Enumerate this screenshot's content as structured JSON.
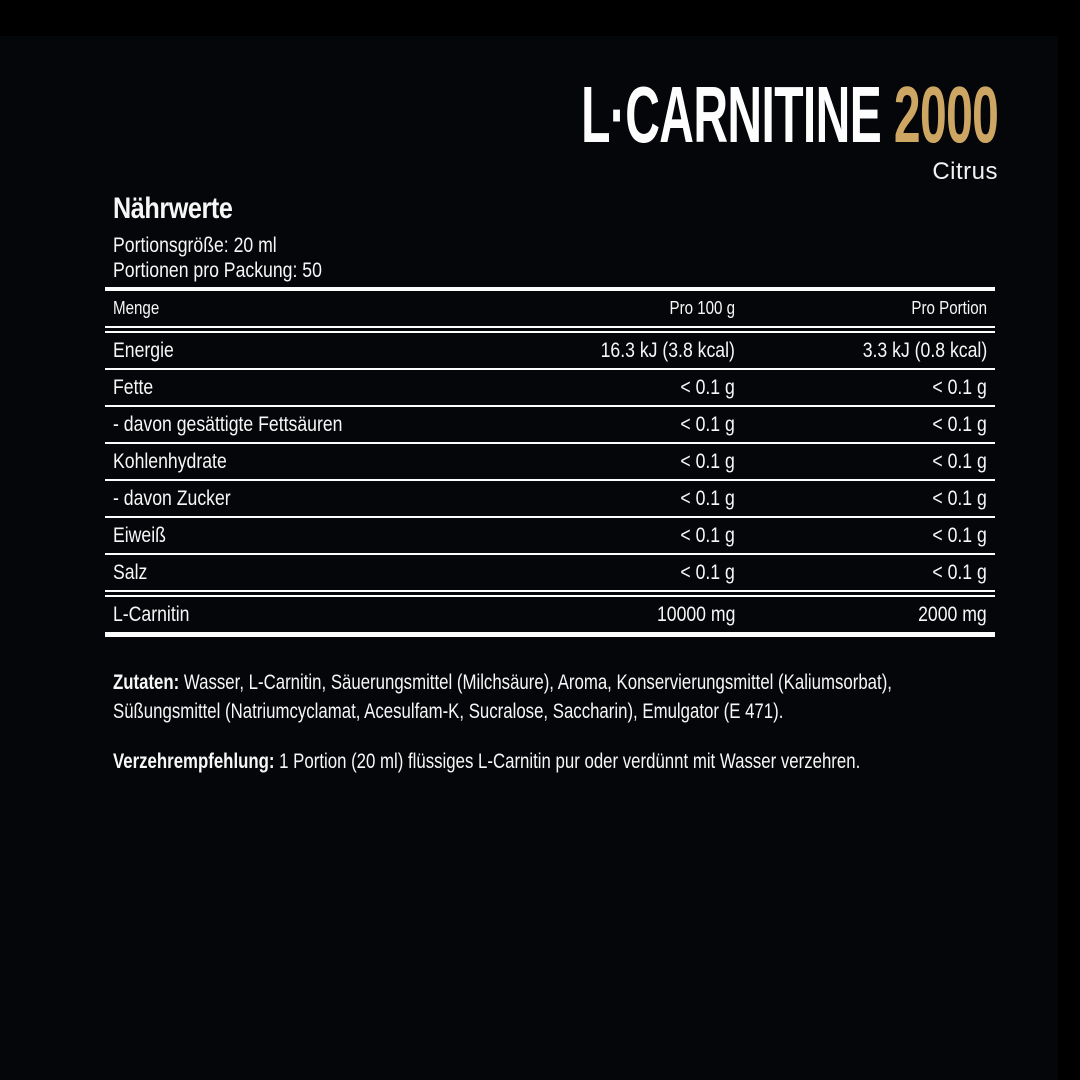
{
  "product": {
    "title_main": "L·CARNITINE",
    "title_number": "2000",
    "flavor": "Citrus",
    "accent_color": "#CDA663"
  },
  "nutrition": {
    "heading": "Nährwerte",
    "serving_size": "Portionsgröße: 20 ml",
    "servings_per_pack": "Portionen pro Packung: 50",
    "table": {
      "columns": [
        "Menge",
        "Pro 100 g",
        "Pro Portion"
      ],
      "rows": [
        {
          "label": "Energie",
          "per100": "16.3 kJ (3.8 kcal)",
          "portion": "3.3 kJ (0.8 kcal)"
        },
        {
          "label": "Fette",
          "per100": "< 0.1 g",
          "portion": "< 0.1 g"
        },
        {
          "label": "- davon gesättigte Fettsäuren",
          "per100": "< 0.1 g",
          "portion": "< 0.1 g"
        },
        {
          "label": "Kohlenhydrate",
          "per100": "< 0.1 g",
          "portion": "< 0.1 g"
        },
        {
          "label": "- davon Zucker",
          "per100": "< 0.1 g",
          "portion": "< 0.1 g"
        },
        {
          "label": "Eiweiß",
          "per100": "< 0.1 g",
          "portion": "< 0.1 g"
        },
        {
          "label": "Salz",
          "per100": "< 0.1 g",
          "portion": "< 0.1 g"
        },
        {
          "label": "L-Carnitin",
          "per100": "10000 mg",
          "portion": "2000 mg"
        }
      ]
    }
  },
  "ingredients": {
    "label": "Zutaten:",
    "line1": " Wasser, L-Carnitin, Säuerungsmittel (Milchsäure), Aroma, Konservierungsmittel (Kaliumsorbat),",
    "line2": "Süßungsmittel (Natriumcyclamat, Acesulfam-K, Sucralose, Saccharin), Emulgator (E 471)."
  },
  "directions": {
    "label": "Verzehrempfehlung:",
    "text": " 1 Portion (20 ml) flüssiges L-Carnitin pur oder verdünnt mit Wasser verzehren."
  }
}
